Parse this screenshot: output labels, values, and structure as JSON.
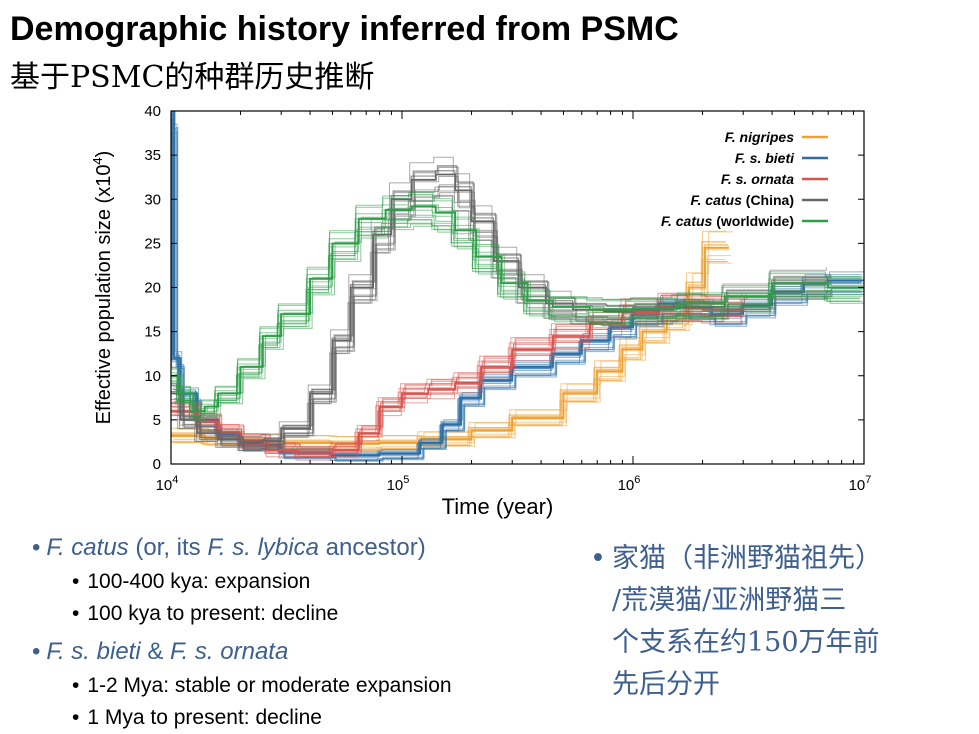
{
  "title_en": "Demographic history inferred from PSMC",
  "title_zh": "基于PSMC的种群历史推断",
  "chart_data": {
    "type": "line",
    "xlabel": "Time (year)",
    "ylabel": "Effective population size (x10",
    "ylabel_sup": "4",
    "ylabel_close": ")",
    "xscale": "log",
    "xlim": [
      10000,
      10000000
    ],
    "ylim": [
      0,
      40
    ],
    "yticks": [
      0,
      5,
      10,
      15,
      20,
      25,
      30,
      35,
      40
    ],
    "ytick_labels": [
      "0",
      "5",
      "10",
      "15",
      "20",
      "25",
      "30",
      "35",
      "40"
    ],
    "xticks": [
      10000,
      100000,
      1000000,
      10000000
    ],
    "xtick_base": "10",
    "xtick_exps": [
      "4",
      "5",
      "6",
      "7"
    ],
    "legend_position": "top-right",
    "series": [
      {
        "name": "F. nigripes",
        "name_suffix": "",
        "color": "#f0a030",
        "points": [
          [
            10000,
            3.2
          ],
          [
            14000,
            2.9
          ],
          [
            20000,
            2.6
          ],
          [
            30000,
            2.4
          ],
          [
            50000,
            2.3
          ],
          [
            80000,
            2.4
          ],
          [
            120000,
            2.8
          ],
          [
            200000,
            3.8
          ],
          [
            300000,
            5.2
          ],
          [
            500000,
            8.0
          ],
          [
            700000,
            10.5
          ],
          [
            900000,
            13.0
          ],
          [
            1100000,
            15.0
          ],
          [
            1400000,
            16.5
          ],
          [
            1700000,
            17.2
          ],
          [
            1750000,
            20.0
          ],
          [
            2000000,
            20.0
          ],
          [
            2050000,
            24.5
          ],
          [
            2600000,
            24.5
          ]
        ]
      },
      {
        "name": "F. s. bieti",
        "name_suffix": "",
        "color": "#2b6fa8",
        "points": [
          [
            10100,
            40
          ],
          [
            10300,
            12.0
          ],
          [
            11000,
            8.0
          ],
          [
            13000,
            5.0
          ],
          [
            16000,
            3.4
          ],
          [
            20000,
            2.2
          ],
          [
            30000,
            1.3
          ],
          [
            50000,
            1.0
          ],
          [
            80000,
            1.2
          ],
          [
            120000,
            2.4
          ],
          [
            150000,
            4.5
          ],
          [
            180000,
            7.5
          ],
          [
            220000,
            9.5
          ],
          [
            300000,
            11.0
          ],
          [
            450000,
            12.5
          ],
          [
            600000,
            14.0
          ],
          [
            800000,
            15.5
          ],
          [
            1000000,
            17.0
          ],
          [
            1300000,
            18.2
          ],
          [
            1700000,
            17.8
          ],
          [
            2200000,
            17.0
          ],
          [
            3000000,
            18.0
          ],
          [
            4000000,
            19.5
          ],
          [
            5500000,
            20.5
          ],
          [
            7000000,
            20.8
          ],
          [
            10000000,
            20.8
          ]
        ]
      },
      {
        "name": "F. s. ornata",
        "name_suffix": "",
        "color": "#d9534f",
        "points": [
          [
            10000,
            6.0
          ],
          [
            13000,
            4.8
          ],
          [
            16000,
            3.6
          ],
          [
            20000,
            2.6
          ],
          [
            26000,
            1.6
          ],
          [
            35000,
            1.2
          ],
          [
            50000,
            1.6
          ],
          [
            65000,
            3.5
          ],
          [
            80000,
            6.5
          ],
          [
            100000,
            8.0
          ],
          [
            130000,
            8.5
          ],
          [
            170000,
            9.2
          ],
          [
            220000,
            11.0
          ],
          [
            300000,
            13.0
          ],
          [
            450000,
            14.5
          ],
          [
            650000,
            16.0
          ],
          [
            900000,
            17.2
          ],
          [
            1300000,
            17.8
          ],
          [
            2000000,
            17.5
          ],
          [
            3000000,
            17.8
          ]
        ]
      },
      {
        "name": "F. catus",
        "name_suffix": " (China)",
        "color": "#666666",
        "points": [
          [
            10000,
            8.0
          ],
          [
            11000,
            5.0
          ],
          [
            13000,
            3.5
          ],
          [
            16000,
            2.8
          ],
          [
            20000,
            2.4
          ],
          [
            25000,
            2.6
          ],
          [
            30000,
            4.0
          ],
          [
            40000,
            8.0
          ],
          [
            50000,
            14.0
          ],
          [
            60000,
            20.0
          ],
          [
            75000,
            26.0
          ],
          [
            90000,
            30.0
          ],
          [
            110000,
            32.2
          ],
          [
            140000,
            32.8
          ],
          [
            170000,
            31.0
          ],
          [
            200000,
            27.5
          ],
          [
            250000,
            23.0
          ],
          [
            320000,
            20.0
          ],
          [
            420000,
            18.2
          ],
          [
            550000,
            17.5
          ],
          [
            750000,
            17.3
          ],
          [
            1000000,
            17.5
          ],
          [
            1500000,
            17.8
          ],
          [
            2500000,
            19.0
          ],
          [
            4000000,
            20.5
          ],
          [
            7000000,
            20.8
          ]
        ]
      },
      {
        "name": "F. catus",
        "name_suffix": " (worldwide)",
        "color": "#2e9e48",
        "points": [
          [
            10000,
            10.0
          ],
          [
            11000,
            8.0
          ],
          [
            12500,
            6.0
          ],
          [
            14000,
            6.5
          ],
          [
            16000,
            8.0
          ],
          [
            20000,
            11.0
          ],
          [
            25000,
            14.5
          ],
          [
            30000,
            17.0
          ],
          [
            40000,
            21.0
          ],
          [
            50000,
            25.0
          ],
          [
            65000,
            27.8
          ],
          [
            85000,
            28.8
          ],
          [
            110000,
            29.2
          ],
          [
            140000,
            28.5
          ],
          [
            170000,
            26.5
          ],
          [
            210000,
            23.5
          ],
          [
            270000,
            20.5
          ],
          [
            350000,
            18.5
          ],
          [
            450000,
            17.8
          ],
          [
            650000,
            17.5
          ],
          [
            1000000,
            17.6
          ],
          [
            1600000,
            18.2
          ],
          [
            2500000,
            19.0
          ],
          [
            4000000,
            20.5
          ],
          [
            7000000,
            20.0
          ],
          [
            10000000,
            20.0
          ]
        ]
      }
    ]
  },
  "left_bullets": [
    {
      "parts": [
        {
          "text": "F. catus",
          "italic": true
        },
        {
          "text": " (or, its ",
          "italic": false
        },
        {
          "text": "F. s. lybica",
          "italic": true
        },
        {
          "text": " ancestor)",
          "italic": false
        }
      ],
      "sub": [
        "100-400 kya: expansion",
        "100 kya to present: decline"
      ]
    },
    {
      "parts": [
        {
          "text": "F. s. bieti",
          "italic": true
        },
        {
          "text": " & ",
          "italic": false
        },
        {
          "text": "F. s. ornata",
          "italic": true
        }
      ],
      "sub": [
        "1-2 Mya: stable or moderate expansion",
        "1 Mya to present: decline"
      ]
    }
  ],
  "right_bullet_lines": [
    "家猫（非洲野猫祖先）",
    "/荒漠猫/亚洲野猫三",
    "个支系在约150万年前",
    "先后分开"
  ]
}
